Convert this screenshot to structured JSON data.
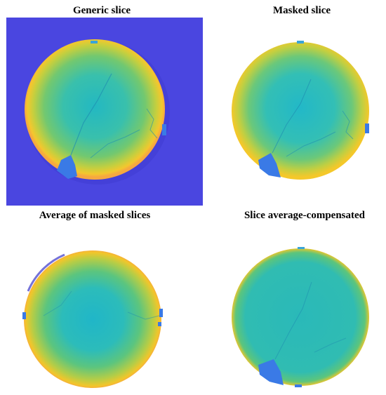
{
  "panels": [
    {
      "id": "generic",
      "title": "Generic slice"
    },
    {
      "id": "masked",
      "title": "Masked slice"
    },
    {
      "id": "average",
      "title": "Average of masked slices"
    },
    {
      "id": "compensated",
      "title": "Slice average-compensated"
    }
  ],
  "colors": {
    "background_blue": "#4a46e0",
    "viridis_yellow": "#f4c82a",
    "viridis_green": "#8ccd5a",
    "viridis_teal": "#2fbfb8",
    "viridis_cyan": "#22b8c8",
    "defect_blue": "#3a7ae6"
  }
}
